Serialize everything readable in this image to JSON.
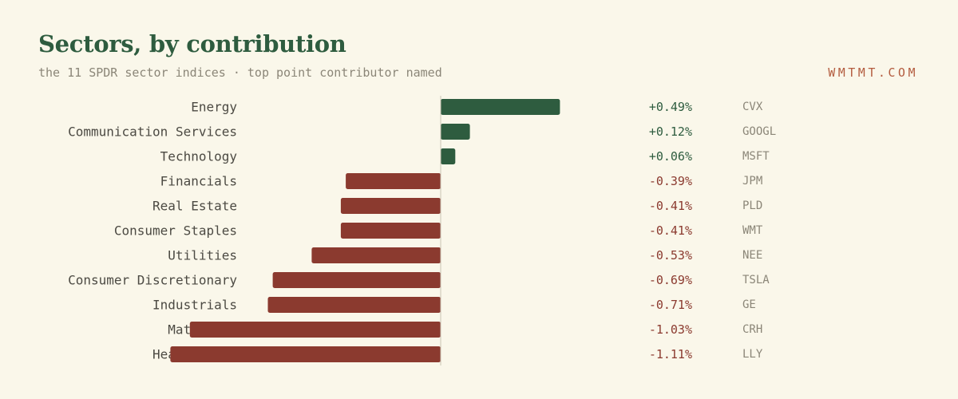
{
  "header": {
    "title": "Sectors, by contribution",
    "subtitle": "the 11 SPDR sector indices · top point contributor named",
    "brand": "WMTMT.COM"
  },
  "colors": {
    "background": "#faf7ea",
    "positive": "#2e5c3f",
    "negative": "#8b3a2f",
    "axis": "#c9c4b4"
  },
  "chart_data": {
    "type": "bar",
    "orientation": "horizontal",
    "categories": [
      "Energy",
      "Communication Services",
      "Technology",
      "Financials",
      "Real Estate",
      "Consumer Staples",
      "Utilities",
      "Consumer Discretionary",
      "Industrials",
      "Materials",
      "Health Care"
    ],
    "values": [
      0.49,
      0.12,
      0.06,
      -0.39,
      -0.41,
      -0.41,
      -0.53,
      -0.69,
      -0.71,
      -1.03,
      -1.11
    ],
    "value_labels": [
      "+0.49%",
      "+0.12%",
      "+0.06%",
      "-0.39%",
      "-0.41%",
      "-0.41%",
      "-0.53%",
      "-0.69%",
      "-0.71%",
      "-1.03%",
      "-1.11%"
    ],
    "top_contributors": [
      "CVX",
      "GOOGL",
      "MSFT",
      "JPM",
      "PLD",
      "WMT",
      "NEE",
      "TSLA",
      "GE",
      "CRH",
      "LLY"
    ],
    "xlim": [
      -1.11,
      0.49
    ],
    "grid": false,
    "legend": "none"
  }
}
